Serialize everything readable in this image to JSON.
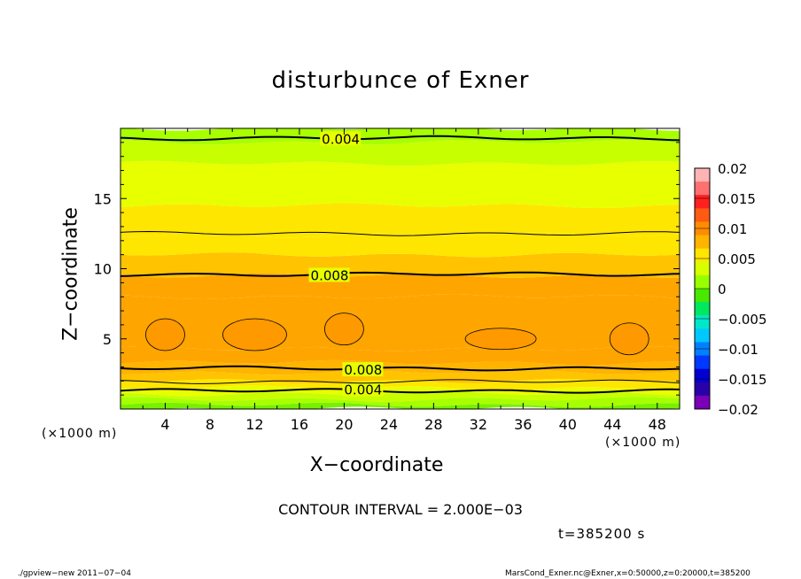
{
  "chart_data": {
    "type": "heatmap",
    "title": "disturbunce of Exner",
    "xlabel": "X−coordinate",
    "ylabel": "Z−coordinate",
    "x_unit": "(×1000 m)",
    "x_unit_right": "(×1000 m)",
    "xlim": [
      0,
      50
    ],
    "ylim": [
      0,
      20
    ],
    "x_ticks": [
      4,
      8,
      12,
      16,
      20,
      24,
      28,
      32,
      36,
      40,
      44,
      48
    ],
    "y_ticks": [
      5,
      10,
      15
    ],
    "colorbar": {
      "levels": [
        "0.02",
        "0.015",
        "0.01",
        "0.005",
        "0",
        "−0.005",
        "−0.01",
        "−0.015",
        "−0.02"
      ],
      "colors": [
        "#ffb4b4",
        "#ff7070",
        "#ff2020",
        "#ff5a14",
        "#ff8c00",
        "#ffb400",
        "#ffe600",
        "#d7ff00",
        "#98ff00",
        "#48e800",
        "#00e860",
        "#00e8c8",
        "#00c8ff",
        "#0080ff",
        "#0038ff",
        "#0000d0",
        "#2a00a8",
        "#7a00b8"
      ]
    },
    "field_bands": {
      "z": [
        0,
        0.3,
        0.7,
        1.1,
        1.5,
        2.0,
        2.6,
        3.3,
        4.3,
        8.0,
        9.5,
        11.0,
        12.4,
        14.5,
        17.5,
        19.0,
        20.0
      ],
      "values": [
        0.003,
        0.004,
        0.005,
        0.006,
        0.007,
        0.008,
        0.009,
        0.0095,
        0.0098,
        0.0095,
        0.008,
        0.0075,
        0.007,
        0.006,
        0.005,
        0.004,
        0.0035
      ]
    },
    "contour_lines": [
      {
        "value": "0.004",
        "z": 1.3,
        "label_x": 20,
        "label": "0.004"
      },
      {
        "value": "0.006",
        "z": 1.95,
        "label_x": null,
        "label": ""
      },
      {
        "value": "0.008",
        "z": 2.9,
        "label_x": 20,
        "label": "0.008"
      },
      {
        "value": "0.008",
        "z": 9.6,
        "label_x": 17,
        "label": "0.008"
      },
      {
        "value": "0.006",
        "z": 12.5,
        "label_x": null,
        "label": ""
      },
      {
        "value": "0.004",
        "z": 19.3,
        "label_x": 18,
        "label": "0.004"
      }
    ],
    "maxima_cells": [
      {
        "x": 4.0,
        "z": 5.3
      },
      {
        "x": 12.0,
        "z": 5.3
      },
      {
        "x": 20.0,
        "z": 5.7
      },
      {
        "x": 34.0,
        "z": 5.0
      },
      {
        "x": 45.5,
        "z": 5.0
      }
    ],
    "annotations": {
      "contour_interval": "CONTOUR INTERVAL = 2.000E−03",
      "time": "t=385200 s",
      "footer_left": "./gpview−new   2011−07−04",
      "footer_right": "MarsCond_Exner.nc@Exner,x=0:50000,z=0:20000,t=385200"
    }
  }
}
